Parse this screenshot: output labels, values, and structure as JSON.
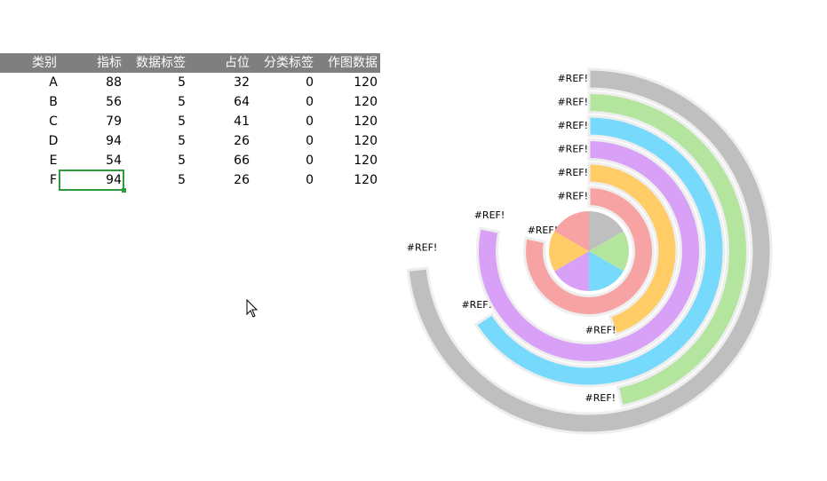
{
  "table": {
    "headers": [
      "类别",
      "指标",
      "数据标签",
      "占位",
      "分类标签",
      "作图数据"
    ],
    "rows": [
      [
        "A",
        88,
        5,
        32,
        0,
        120
      ],
      [
        "B",
        56,
        5,
        64,
        0,
        120
      ],
      [
        "C",
        79,
        5,
        41,
        0,
        120
      ],
      [
        "D",
        94,
        5,
        26,
        0,
        120
      ],
      [
        "E",
        54,
        5,
        66,
        0,
        120
      ],
      [
        "F",
        94,
        5,
        26,
        0,
        120
      ]
    ]
  },
  "chart": {
    "type": "radial-bar",
    "colors": [
      "#bfbfbf",
      "#b3e59e",
      "#77d9fb",
      "#d9a0f7",
      "#ffcc66",
      "#f7a3a3"
    ],
    "start_labels": [
      "#REF!",
      "#REF!",
      "#REF!",
      "#REF!",
      "#REF!",
      "#REF!"
    ],
    "end_labels": [
      "#REF!",
      "#REF!",
      "#REF!",
      "#REF!",
      "#REF!",
      "#REF!"
    ]
  }
}
